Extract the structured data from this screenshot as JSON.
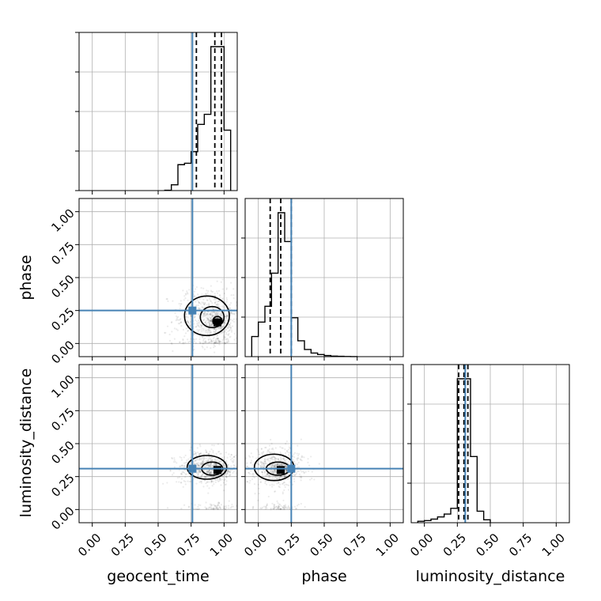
{
  "params": [
    "geocent_time",
    "phase",
    "luminosity_distance"
  ],
  "ticks": [
    "0.00",
    "0.25",
    "0.50",
    "0.75",
    "1.00"
  ],
  "colors": {
    "truth": "#4682b4",
    "hist": "#000000",
    "grid": "#b0b0b0"
  },
  "chart_data": {
    "type": "corner",
    "axis_range": [
      -0.1,
      1.1
    ],
    "truths": {
      "geocent_time": 0.76,
      "phase": 0.25,
      "luminosity_distance": 0.31
    },
    "marginals": [
      {
        "param": "geocent_time",
        "edges": [
          0.55,
          0.6,
          0.65,
          0.7,
          0.75,
          0.8,
          0.85,
          0.9,
          0.95,
          1.0,
          1.05
        ],
        "values": [
          0.2,
          4,
          18,
          19,
          27,
          46,
          53,
          100,
          100,
          42
        ],
        "quantiles": [
          0.79,
          0.93,
          0.98
        ]
      },
      {
        "param": "phase",
        "edges": [
          -0.05,
          0.0,
          0.05,
          0.1,
          0.15,
          0.2,
          0.25,
          0.3,
          0.35,
          0.4,
          0.45,
          0.5,
          0.55,
          0.6,
          0.65,
          0.7,
          0.75
        ],
        "values": [
          14,
          24,
          35,
          58,
          100,
          80,
          27,
          11,
          5,
          2.5,
          1.5,
          0.8,
          0.4,
          0.2,
          0.1,
          0.05
        ],
        "quantiles": [
          0.09,
          0.17,
          0.25
        ]
      },
      {
        "param": "luminosity_distance",
        "edges": [
          -0.05,
          0.0,
          0.05,
          0.1,
          0.15,
          0.2,
          0.25,
          0.3,
          0.35,
          0.4,
          0.45,
          0.5
        ],
        "values": [
          1,
          1.5,
          2.5,
          4,
          6,
          10,
          100,
          100,
          46,
          8,
          2
        ],
        "quantiles": [
          0.26,
          0.3,
          0.33
        ]
      }
    ],
    "joint": [
      {
        "x": "geocent_time",
        "y": "phase",
        "peak": [
          0.95,
          0.16
        ],
        "contours": [
          {
            "center": [
              0.95,
              0.17
            ],
            "radius": [
              0.035,
              0.035
            ]
          },
          {
            "center": [
              0.91,
              0.2
            ],
            "radius": [
              0.09,
              0.08
            ]
          },
          {
            "center": [
              0.87,
              0.21
            ],
            "radius": [
              0.17,
              0.15
            ]
          }
        ]
      },
      {
        "x": "geocent_time",
        "y": "luminosity_distance",
        "peak": [
          0.95,
          0.3
        ],
        "contours": [
          {
            "center": [
              0.95,
              0.3
            ],
            "radius": [
              0.025,
              0.02
            ]
          },
          {
            "center": [
              0.91,
              0.31
            ],
            "radius": [
              0.08,
              0.05
            ]
          },
          {
            "center": [
              0.87,
              0.32
            ],
            "radius": [
              0.15,
              0.09
            ]
          }
        ]
      },
      {
        "x": "phase",
        "y": "luminosity_distance",
        "peak": [
          0.17,
          0.3
        ],
        "contours": [
          {
            "center": [
              0.17,
              0.3
            ],
            "radius": [
              0.025,
              0.02
            ]
          },
          {
            "center": [
              0.15,
              0.31
            ],
            "radius": [
              0.09,
              0.05
            ]
          },
          {
            "center": [
              0.12,
              0.32
            ],
            "radius": [
              0.15,
              0.1
            ]
          }
        ]
      }
    ]
  }
}
